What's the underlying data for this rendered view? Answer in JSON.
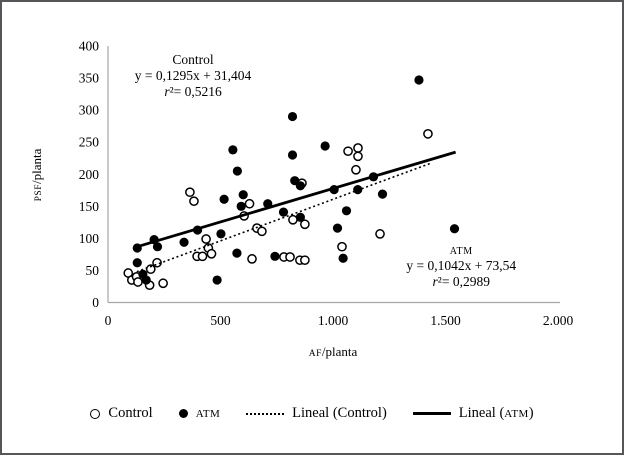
{
  "figure": {
    "background": "#ffffff",
    "border_color": "#55565a",
    "axis_color": "#a6a6a6",
    "point_color": "#000000"
  },
  "chart_data": {
    "type": "scatter",
    "title": "",
    "xlabel": {
      "caps": "AF",
      "rest": "/planta"
    },
    "ylabel": {
      "caps": "PSF",
      "rest": "/planta"
    },
    "xlim": [
      0,
      2000
    ],
    "ylim": [
      0,
      400
    ],
    "grid": false,
    "xticks": [
      {
        "value": 0,
        "label": "0"
      },
      {
        "value": 500,
        "label": "500"
      },
      {
        "value": 1000,
        "label": "1.000"
      },
      {
        "value": 1500,
        "label": "1.500"
      },
      {
        "value": 2000,
        "label": "2.000"
      }
    ],
    "yticks": [
      {
        "value": 0,
        "label": "0"
      },
      {
        "value": 50,
        "label": "50"
      },
      {
        "value": 100,
        "label": "100"
      },
      {
        "value": 150,
        "label": "150"
      },
      {
        "value": 200,
        "label": "200"
      },
      {
        "value": 250,
        "label": "250"
      },
      {
        "value": 300,
        "label": "300"
      },
      {
        "value": 350,
        "label": "350"
      },
      {
        "value": 400,
        "label": "400"
      }
    ],
    "series": [
      {
        "name": "Control",
        "marker": "open-circle",
        "color": "#000000",
        "points": [
          [
            90,
            46
          ],
          [
            106,
            35
          ],
          [
            127,
            40
          ],
          [
            133,
            32
          ],
          [
            185,
            27
          ],
          [
            190,
            52
          ],
          [
            218,
            62
          ],
          [
            245,
            30
          ],
          [
            364,
            172
          ],
          [
            382,
            158
          ],
          [
            396,
            72
          ],
          [
            420,
            72
          ],
          [
            436,
            99
          ],
          [
            446,
            85
          ],
          [
            460,
            76
          ],
          [
            605,
            135
          ],
          [
            629,
            154
          ],
          [
            640,
            68
          ],
          [
            662,
            116
          ],
          [
            684,
            111
          ],
          [
            782,
            71
          ],
          [
            809,
            71
          ],
          [
            822,
            129
          ],
          [
            853,
            66
          ],
          [
            875,
            66
          ],
          [
            875,
            122
          ],
          [
            862,
            186
          ],
          [
            1040,
            87
          ],
          [
            1067,
            236
          ],
          [
            1102,
            207
          ],
          [
            1111,
            241
          ],
          [
            1111,
            228
          ],
          [
            1209,
            107
          ],
          [
            1422,
            263
          ]
        ]
      },
      {
        "name": "ATM",
        "marker": "filled-circle",
        "color": "#000000",
        "points": [
          [
            130,
            85
          ],
          [
            130,
            62
          ],
          [
            155,
            44
          ],
          [
            170,
            35
          ],
          [
            205,
            98
          ],
          [
            220,
            87
          ],
          [
            338,
            94
          ],
          [
            398,
            113
          ],
          [
            485,
            35
          ],
          [
            502,
            107
          ],
          [
            516,
            161
          ],
          [
            555,
            238
          ],
          [
            573,
            77
          ],
          [
            575,
            205
          ],
          [
            592,
            150
          ],
          [
            601,
            168
          ],
          [
            710,
            154
          ],
          [
            742,
            72
          ],
          [
            780,
            141
          ],
          [
            820,
            290
          ],
          [
            820,
            230
          ],
          [
            830,
            190
          ],
          [
            855,
            182
          ],
          [
            855,
            133
          ],
          [
            965,
            244
          ],
          [
            1005,
            176
          ],
          [
            1020,
            116
          ],
          [
            1045,
            69
          ],
          [
            1060,
            143
          ],
          [
            1110,
            176
          ],
          [
            1180,
            196
          ],
          [
            1220,
            169
          ],
          [
            1382,
            347
          ],
          [
            1540,
            115
          ]
        ]
      }
    ],
    "trendlines": [
      {
        "name": "Lineal (Control)",
        "style": "dotted",
        "slope": 0.1295,
        "intercept": 31.404,
        "x_range": [
          128,
          1430
        ]
      },
      {
        "name": "Lineal (ATM)",
        "style": "solid",
        "slope": 0.1042,
        "intercept": 73.54,
        "x_range": [
          128,
          1545
        ]
      }
    ],
    "annotations": [
      {
        "anchor": {
          "x": 378,
          "y": 378
        },
        "lines": [
          {
            "text": "Control",
            "style": "normal"
          },
          {
            "text": "y = 0,1295x + 31,404",
            "style": "normal"
          },
          {
            "text": "r²= 0,5216",
            "style": "r2"
          }
        ]
      },
      {
        "anchor": {
          "x": 1570,
          "y": 82
        },
        "lines": [
          {
            "text": "ATM",
            "style": "smallcaps"
          },
          {
            "text": "y = 0,1042x + 73,54",
            "style": "normal"
          },
          {
            "text": "r²= 0,2989",
            "style": "r2"
          }
        ]
      }
    ],
    "legend": {
      "position": "bottom",
      "items": [
        {
          "marker": "open-circle",
          "label": "Control"
        },
        {
          "marker": "filled-circle",
          "label": "ATM"
        },
        {
          "marker": "dotted-line",
          "label": "Lineal (Control)"
        },
        {
          "marker": "solid-line",
          "prefix": "Lineal (",
          "caps": "ATM",
          "suffix": ")"
        }
      ]
    }
  }
}
